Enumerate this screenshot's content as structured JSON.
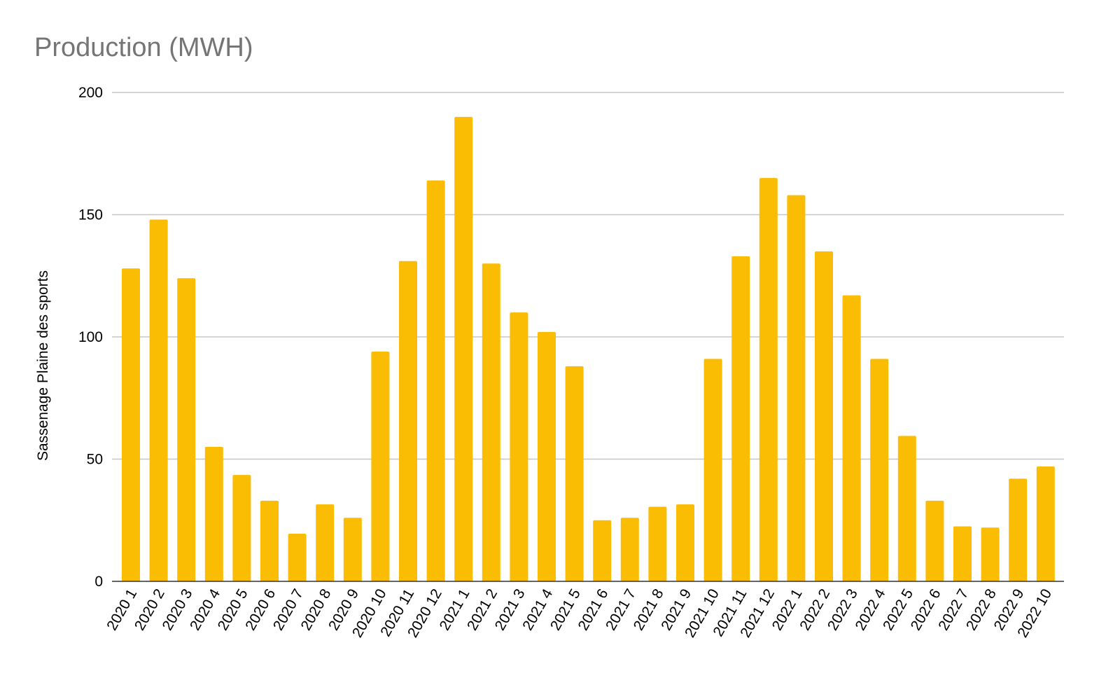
{
  "chart_data": {
    "type": "bar",
    "title": "Production (MWH)",
    "xlabel": "",
    "ylabel": "Sassenage Plaine des sports",
    "ylim": [
      0,
      200
    ],
    "yticks": [
      0,
      50,
      100,
      150,
      200
    ],
    "grid": true,
    "bar_color": "#fbbc04",
    "categories": [
      "2020 1",
      "2020 2",
      "2020 3",
      "2020 4",
      "2020 5",
      "2020 6",
      "2020 7",
      "2020 8",
      "2020 9",
      "2020 10",
      "2020 11",
      "2020 12",
      "2021 1",
      "2021 2",
      "2021 3",
      "2021 4",
      "2021 5",
      "2021 6",
      "2021 7",
      "2021 8",
      "2021 9",
      "2021 10",
      "2021 11",
      "2021 12",
      "2022 1",
      "2022 2",
      "2022 3",
      "2022 4",
      "2022 5",
      "2022 6",
      "2022 7",
      "2022 8",
      "2022 9",
      "2022 10"
    ],
    "series": [
      {
        "values": [
          128,
          148,
          124,
          55,
          43.5,
          33,
          19.5,
          31.5,
          26,
          94,
          131,
          164,
          190,
          130,
          110,
          102,
          88,
          25,
          26,
          30.5,
          31.5,
          91,
          133,
          165,
          158,
          135,
          117,
          91,
          59.5,
          33,
          22.5,
          22,
          42,
          47
        ]
      }
    ]
  }
}
